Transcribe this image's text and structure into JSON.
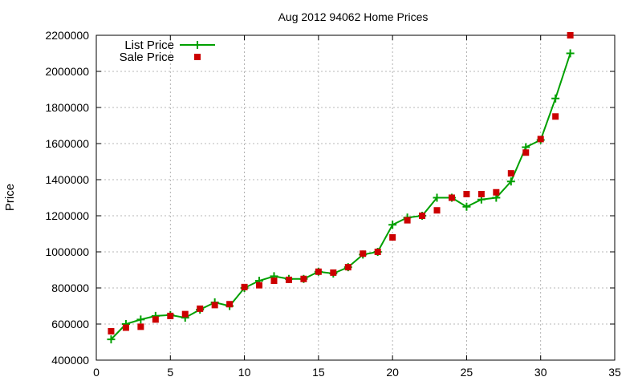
{
  "chart_data": {
    "type": "line",
    "title": "Aug 2012 94062 Home Prices",
    "xlabel": "",
    "ylabel": "Price",
    "xlim": [
      0,
      35
    ],
    "ylim": [
      400000,
      2200000
    ],
    "x_ticks": [
      0,
      5,
      10,
      15,
      20,
      25,
      30,
      35
    ],
    "y_ticks": [
      400000,
      600000,
      800000,
      1000000,
      1200000,
      1400000,
      1600000,
      1800000,
      2000000,
      2200000
    ],
    "grid": true,
    "legend_position": "top-left",
    "x": [
      1,
      2,
      3,
      4,
      5,
      6,
      7,
      8,
      9,
      10,
      11,
      12,
      13,
      14,
      15,
      16,
      17,
      18,
      19,
      20,
      21,
      22,
      23,
      24,
      25,
      26,
      27,
      28,
      29,
      30,
      31,
      32
    ],
    "series": [
      {
        "name": "List Price",
        "style": "line+cross",
        "color": "#00a000",
        "values": [
          515000,
          600000,
          625000,
          645000,
          650000,
          635000,
          680000,
          720000,
          700000,
          800000,
          840000,
          865000,
          850000,
          850000,
          890000,
          880000,
          915000,
          985000,
          1000000,
          1150000,
          1190000,
          1200000,
          1300000,
          1300000,
          1250000,
          1290000,
          1300000,
          1390000,
          1580000,
          1620000,
          1850000,
          2100000
        ]
      },
      {
        "name": "Sale Price",
        "style": "square",
        "color": "#cc0000",
        "values": [
          560000,
          580000,
          585000,
          625000,
          645000,
          655000,
          685000,
          705000,
          710000,
          805000,
          815000,
          840000,
          845000,
          850000,
          890000,
          885000,
          915000,
          990000,
          1000000,
          1080000,
          1175000,
          1200000,
          1230000,
          1300000,
          1320000,
          1320000,
          1330000,
          1435000,
          1550000,
          1625000,
          1750000,
          2200000
        ]
      }
    ]
  }
}
